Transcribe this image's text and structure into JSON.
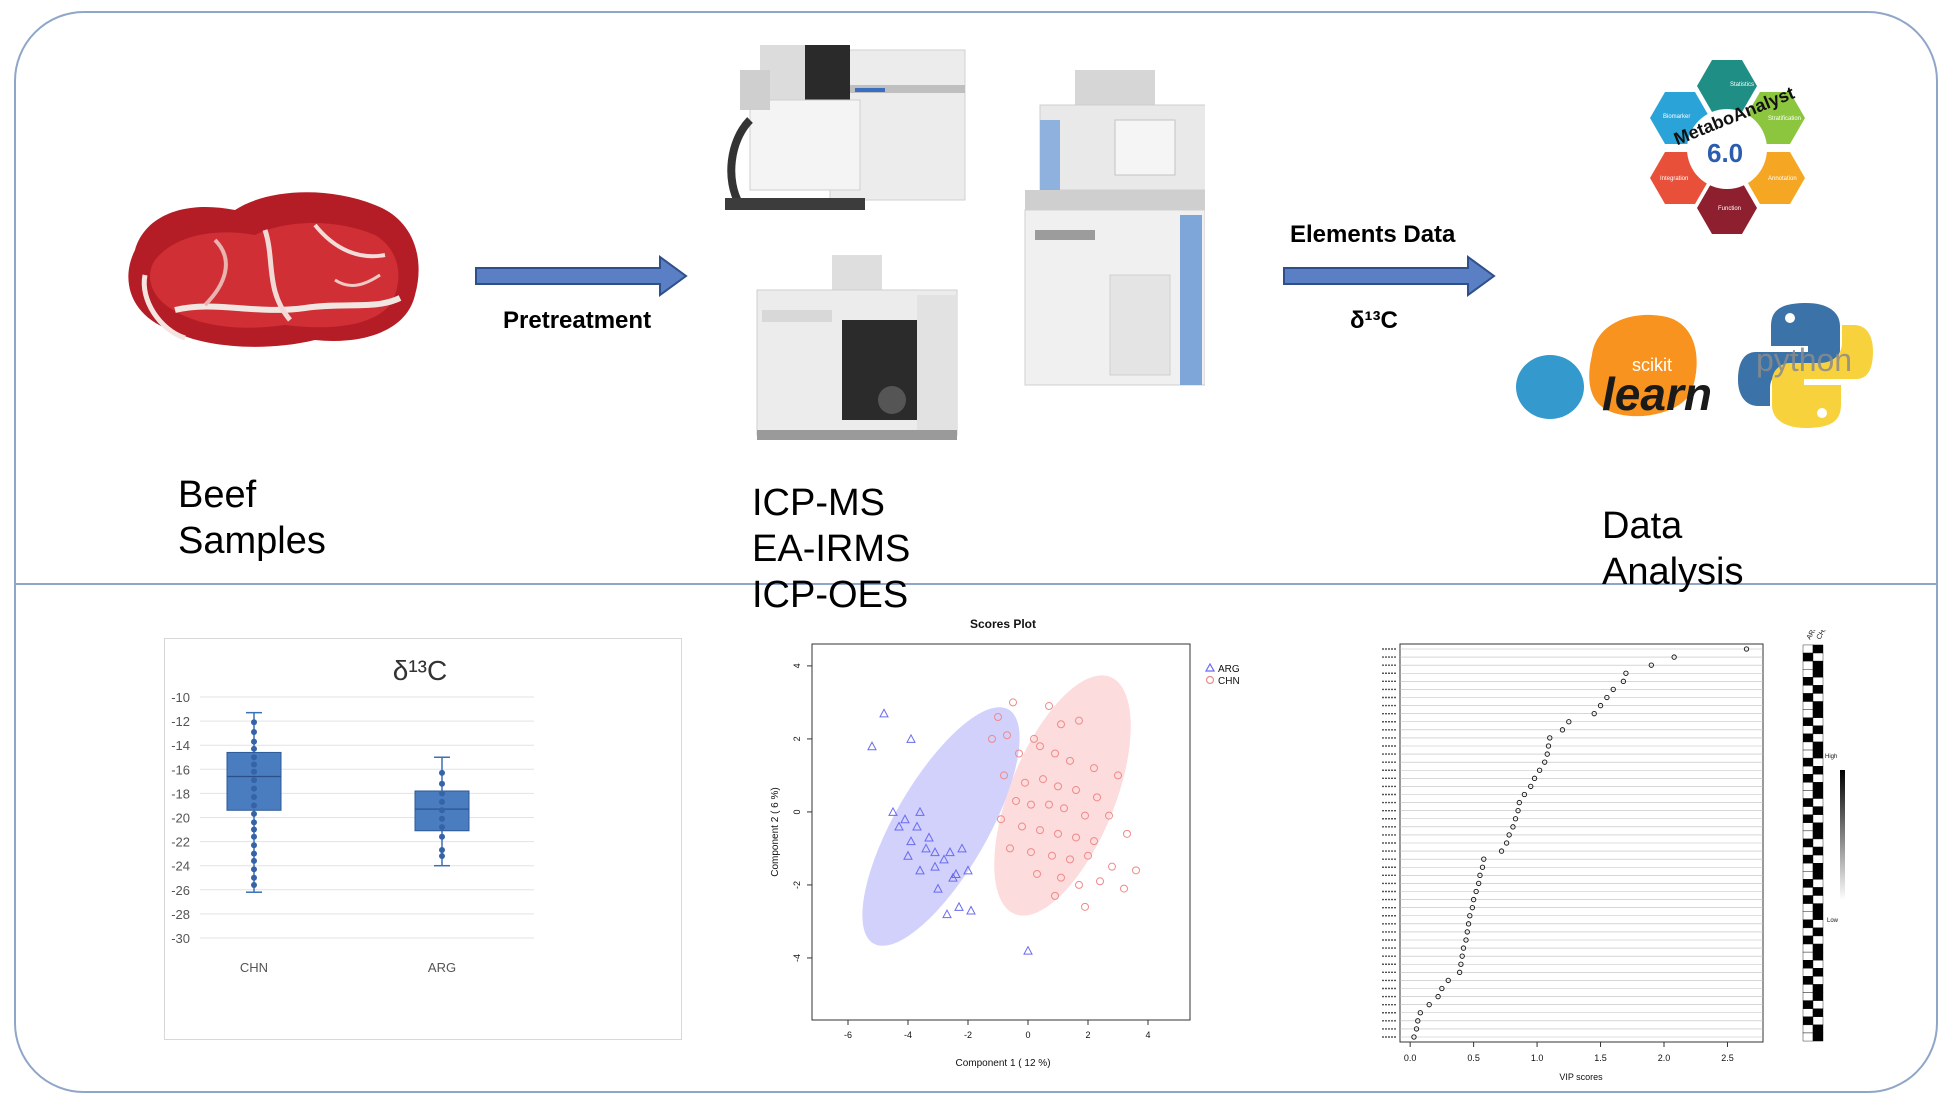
{
  "steps": {
    "beef": {
      "line1": "Beef",
      "line2": "Samples"
    },
    "pretreatment": "Pretreatment",
    "instruments": [
      "ICP-MS",
      "EA-IRMS",
      "ICP-OES"
    ],
    "elements_data": "Elements Data",
    "d13c": "δ¹³C",
    "analysis": {
      "line1": "Data",
      "line2": "Analysis"
    }
  },
  "logos": {
    "metaboanalyst": {
      "name": "MetaboAnalyst",
      "version": "6.0",
      "petals": [
        "Statistics",
        "Stratification",
        "Annotation",
        "Function",
        "Integration",
        "Biomarker"
      ]
    },
    "sklearn": {
      "top": "scikit",
      "main": "learn"
    },
    "python": {
      "word": "python"
    }
  },
  "colors": {
    "frame": "#8fa6c9",
    "arrow": "#4e72b8",
    "box": "#4a7cc0",
    "arg": "#6b6bf0",
    "chn": "#ef8a8a"
  },
  "chart_data": [
    {
      "type": "box",
      "title": "δ¹³C",
      "categories": [
        "CHN",
        "ARG"
      ],
      "ylim": [
        -30,
        -10
      ],
      "yticks": [
        -10,
        -12,
        -14,
        -16,
        -18,
        -20,
        -22,
        -24,
        -26,
        -28,
        -30
      ],
      "series": [
        {
          "name": "CHN",
          "min": -26.2,
          "q1": -19.4,
          "median": -16.6,
          "q3": -14.6,
          "max": -11.3,
          "points": [
            -12.1,
            -12.9,
            -13.7,
            -14.3,
            -15.0,
            -15.6,
            -16.2,
            -16.9,
            -17.6,
            -18.3,
            -19.0,
            -19.7,
            -20.4,
            -21.0,
            -21.6,
            -22.3,
            -23.0,
            -23.6,
            -24.3,
            -25.0,
            -25.6
          ]
        },
        {
          "name": "ARG",
          "min": -24.0,
          "q1": -21.1,
          "median": -19.3,
          "q3": -17.8,
          "max": -15.0,
          "points": [
            -16.3,
            -17.2,
            -18.0,
            -18.7,
            -19.4,
            -20.1,
            -20.8,
            -21.6,
            -22.7,
            -23.2
          ]
        }
      ]
    },
    {
      "type": "scatter",
      "title": "Scores Plot",
      "xlabel": "Component 1 ( 12 %)",
      "ylabel": "Component 2 ( 6 %)",
      "xlim": [
        -7.2,
        5.4
      ],
      "ylim": [
        -5.7,
        4.6
      ],
      "xticks": [
        -6,
        -4,
        -2,
        0,
        2,
        4
      ],
      "yticks": [
        -4,
        -2,
        0,
        2,
        4
      ],
      "legend_position": "top-right",
      "series": [
        {
          "name": "ARG",
          "marker": "triangle",
          "points": [
            [
              -4.8,
              2.7
            ],
            [
              -5.2,
              1.8
            ],
            [
              -3.9,
              2.0
            ],
            [
              -4.5,
              0.0
            ],
            [
              -4.1,
              -0.2
            ],
            [
              -3.6,
              0.0
            ],
            [
              -4.3,
              -0.4
            ],
            [
              -3.7,
              -0.4
            ],
            [
              -3.3,
              -0.7
            ],
            [
              -3.9,
              -0.8
            ],
            [
              -3.4,
              -1.0
            ],
            [
              -3.1,
              -1.1
            ],
            [
              -4.0,
              -1.2
            ],
            [
              -2.6,
              -1.1
            ],
            [
              -2.2,
              -1.0
            ],
            [
              -2.8,
              -1.3
            ],
            [
              -3.1,
              -1.5
            ],
            [
              -3.6,
              -1.6
            ],
            [
              -2.4,
              -1.7
            ],
            [
              -2.0,
              -1.6
            ],
            [
              -2.5,
              -1.8
            ],
            [
              -3.0,
              -2.1
            ],
            [
              -2.3,
              -2.6
            ],
            [
              -1.9,
              -2.7
            ],
            [
              -2.7,
              -2.8
            ],
            [
              0.0,
              -3.8
            ]
          ]
        },
        {
          "name": "CHN",
          "marker": "circle",
          "points": [
            [
              -0.5,
              3.0
            ],
            [
              -1.0,
              2.6
            ],
            [
              -1.2,
              2.0
            ],
            [
              -0.7,
              2.1
            ],
            [
              0.2,
              2.0
            ],
            [
              0.7,
              2.9
            ],
            [
              1.1,
              2.4
            ],
            [
              1.7,
              2.5
            ],
            [
              -0.3,
              1.6
            ],
            [
              0.4,
              1.8
            ],
            [
              0.9,
              1.6
            ],
            [
              1.4,
              1.4
            ],
            [
              2.2,
              1.2
            ],
            [
              -0.8,
              1.0
            ],
            [
              -0.1,
              0.8
            ],
            [
              0.5,
              0.9
            ],
            [
              1.0,
              0.7
            ],
            [
              1.6,
              0.6
            ],
            [
              2.3,
              0.4
            ],
            [
              3.0,
              1.0
            ],
            [
              -0.4,
              0.3
            ],
            [
              0.1,
              0.2
            ],
            [
              0.7,
              0.2
            ],
            [
              1.2,
              0.1
            ],
            [
              1.9,
              -0.1
            ],
            [
              2.7,
              -0.1
            ],
            [
              -0.9,
              -0.2
            ],
            [
              -0.2,
              -0.4
            ],
            [
              0.4,
              -0.5
            ],
            [
              1.0,
              -0.6
            ],
            [
              1.6,
              -0.7
            ],
            [
              2.2,
              -0.8
            ],
            [
              3.3,
              -0.6
            ],
            [
              -0.6,
              -1.0
            ],
            [
              0.1,
              -1.1
            ],
            [
              0.8,
              -1.2
            ],
            [
              1.4,
              -1.3
            ],
            [
              2.0,
              -1.2
            ],
            [
              2.8,
              -1.5
            ],
            [
              3.6,
              -1.6
            ],
            [
              0.3,
              -1.7
            ],
            [
              1.1,
              -1.8
            ],
            [
              1.7,
              -2.0
            ],
            [
              2.4,
              -1.9
            ],
            [
              3.2,
              -2.1
            ],
            [
              0.9,
              -2.3
            ],
            [
              1.9,
              -2.6
            ]
          ]
        }
      ],
      "ellipses": [
        {
          "series": "ARG",
          "cx": -2.9,
          "cy": -0.4,
          "rx": 1.55,
          "ry": 3.7,
          "angle": 30
        },
        {
          "series": "CHN",
          "cx": 1.15,
          "cy": 0.45,
          "rx": 1.75,
          "ry": 3.5,
          "angle": 22
        }
      ]
    },
    {
      "type": "dot",
      "xlabel": "VIP scores",
      "xlim": [
        -0.08,
        2.78
      ],
      "xticks": [
        0.0,
        0.5,
        1.0,
        1.5,
        2.0,
        2.5
      ],
      "values": [
        2.65,
        2.08,
        1.9,
        1.7,
        1.68,
        1.6,
        1.55,
        1.5,
        1.45,
        1.25,
        1.2,
        1.1,
        1.09,
        1.08,
        1.06,
        1.02,
        0.98,
        0.95,
        0.9,
        0.86,
        0.85,
        0.83,
        0.81,
        0.78,
        0.76,
        0.72,
        0.58,
        0.57,
        0.55,
        0.54,
        0.52,
        0.5,
        0.49,
        0.47,
        0.46,
        0.45,
        0.44,
        0.42,
        0.41,
        0.4,
        0.39,
        0.3,
        0.25,
        0.22,
        0.15,
        0.08,
        0.06,
        0.05,
        0.03
      ],
      "heatmap_columns": [
        "ARG",
        "CHN"
      ],
      "heatmap_legend": {
        "high": "High",
        "low": "Low"
      }
    }
  ]
}
